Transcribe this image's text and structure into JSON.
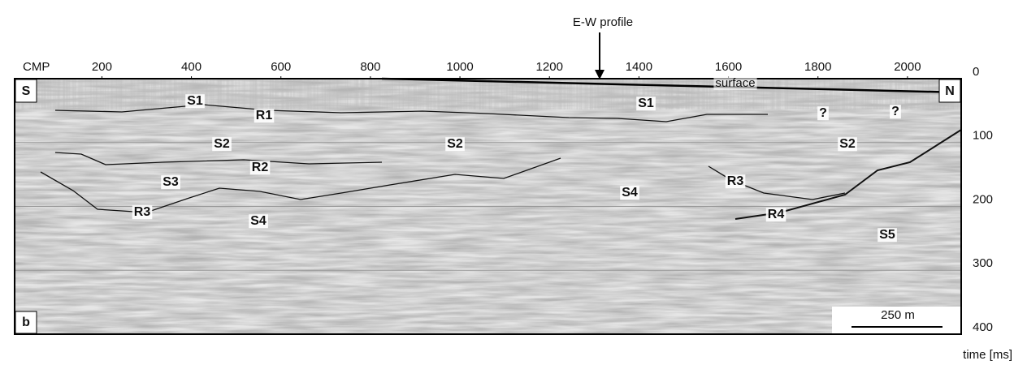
{
  "chart_data": {
    "type": "section",
    "title": "E-W profile",
    "xlabel": "CMP",
    "ylabel": "time [ms]",
    "xlim": [
      5,
      2120
    ],
    "xticks": [
      200,
      400,
      600,
      800,
      1000,
      1200,
      1400,
      1600,
      1800,
      2000
    ],
    "ylim": [
      0,
      400
    ],
    "yticks": [
      0,
      100,
      200,
      300,
      400
    ],
    "grid": true,
    "left_label": "S",
    "right_label": "N",
    "panel_label": "b",
    "scale_bar": "250 m",
    "annotations": [
      "S1",
      "R1",
      "S1",
      "surface",
      "?",
      "?",
      "S2",
      "S2",
      "S2",
      "R2",
      "S3",
      "R3",
      "S4",
      "S4",
      "R3",
      "R4",
      "S5"
    ]
  }
}
